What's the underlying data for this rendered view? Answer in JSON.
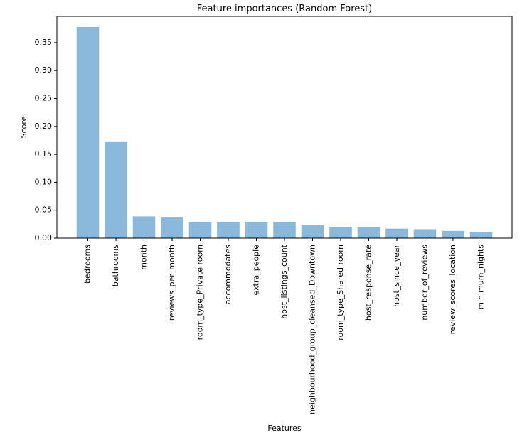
{
  "chart_data": {
    "type": "bar",
    "title": "Feature importances (Random Forest)",
    "xlabel": "Features",
    "ylabel": "Score",
    "categories": [
      "bedrooms",
      "bathrooms",
      "month",
      "reviews_per_month",
      "room_type_Private room",
      "accommodates",
      "extra_people",
      "host_listings_count",
      "neighbourhood_group_cleansed_Downtown",
      "room_type_Shared room",
      "host_response_rate",
      "host_since_year",
      "number_of_reviews",
      "review_scores_location",
      "minimum_nights"
    ],
    "values": [
      0.378,
      0.172,
      0.039,
      0.038,
      0.029,
      0.029,
      0.029,
      0.029,
      0.024,
      0.02,
      0.02,
      0.017,
      0.016,
      0.013,
      0.011
    ],
    "yticks": [
      "0.00",
      "0.05",
      "0.10",
      "0.15",
      "0.20",
      "0.25",
      "0.30",
      "0.35"
    ],
    "ylim": [
      0,
      0.397
    ],
    "bar_color": "#8ab9dc",
    "grid": false,
    "legend": "none"
  }
}
